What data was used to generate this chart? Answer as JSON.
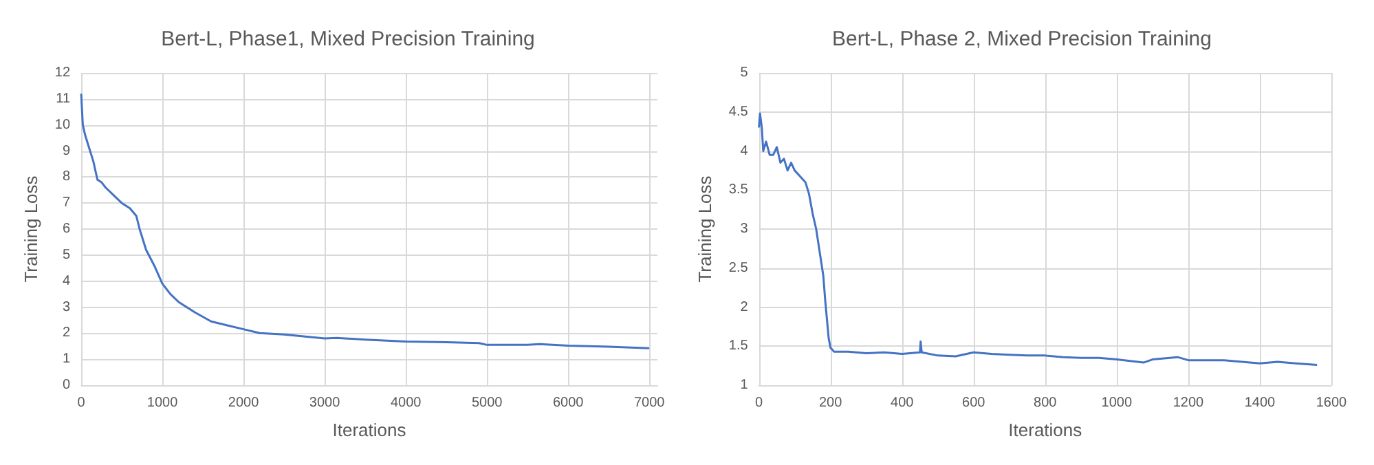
{
  "chart_data": [
    {
      "type": "line",
      "title": "Bert-L, Phase1, Mixed Precision Training",
      "xlabel": "Iterations",
      "ylabel": "Training Loss",
      "x": [
        0,
        20,
        50,
        100,
        150,
        200,
        250,
        300,
        400,
        500,
        600,
        680,
        720,
        800,
        900,
        1000,
        1100,
        1200,
        1400,
        1600,
        1800,
        2000,
        2200,
        2500,
        3000,
        3150,
        3500,
        4000,
        4500,
        4900,
        5000,
        5500,
        5650,
        6000,
        6500,
        7000
      ],
      "series": [
        {
          "color": "#4472c4",
          "values": [
            11.2,
            10,
            9.6,
            9.1,
            8.6,
            7.9,
            7.8,
            7.6,
            7.3,
            7.0,
            6.8,
            6.5,
            6.0,
            5.2,
            4.6,
            3.9,
            3.5,
            3.2,
            2.8,
            2.45,
            2.3,
            2.15,
            2.0,
            1.95,
            1.8,
            1.82,
            1.75,
            1.68,
            1.65,
            1.62,
            1.55,
            1.55,
            1.58,
            1.52,
            1.48,
            1.42
          ]
        }
      ],
      "xlim": [
        0,
        7100
      ],
      "xticks": [
        0,
        1000,
        2000,
        3000,
        4000,
        5000,
        6000,
        7000
      ],
      "ylim": [
        0,
        12
      ],
      "yticks": [
        0,
        1,
        2,
        3,
        4,
        5,
        6,
        7,
        8,
        9,
        10,
        11,
        12
      ],
      "grid": true,
      "marker": "none",
      "line_style": "solid"
    },
    {
      "type": "line",
      "title": "Bert-L, Phase 2, Mixed Precision Training",
      "xlabel": "Iterations",
      "ylabel": "Training Loss",
      "x": [
        0,
        3,
        8,
        12,
        20,
        30,
        40,
        50,
        60,
        70,
        80,
        90,
        100,
        110,
        120,
        130,
        140,
        150,
        160,
        170,
        180,
        185,
        190,
        195,
        200,
        210,
        250,
        300,
        350,
        400,
        450,
        452,
        455,
        500,
        550,
        600,
        650,
        700,
        750,
        800,
        850,
        900,
        950,
        1000,
        1075,
        1100,
        1170,
        1200,
        1300,
        1400,
        1450,
        1500,
        1560
      ],
      "series": [
        {
          "color": "#4472c4",
          "values": [
            4.3,
            4.48,
            4.3,
            4.0,
            4.12,
            3.95,
            3.95,
            4.05,
            3.85,
            3.9,
            3.75,
            3.85,
            3.75,
            3.7,
            3.65,
            3.6,
            3.45,
            3.2,
            3.0,
            2.7,
            2.4,
            2.1,
            1.85,
            1.6,
            1.48,
            1.43,
            1.43,
            1.41,
            1.42,
            1.4,
            1.42,
            1.56,
            1.42,
            1.38,
            1.37,
            1.42,
            1.4,
            1.39,
            1.38,
            1.38,
            1.36,
            1.35,
            1.35,
            1.33,
            1.29,
            1.33,
            1.36,
            1.32,
            1.32,
            1.28,
            1.3,
            1.28,
            1.26
          ]
        }
      ],
      "xlim": [
        0,
        1600
      ],
      "xticks": [
        0,
        200,
        400,
        600,
        800,
        1000,
        1200,
        1400,
        1600
      ],
      "ylim": [
        1,
        5
      ],
      "yticks": [
        1,
        1.5,
        2,
        2.5,
        3,
        3.5,
        4,
        4.5,
        5
      ],
      "grid": true,
      "marker": "none",
      "line_style": "solid"
    }
  ]
}
